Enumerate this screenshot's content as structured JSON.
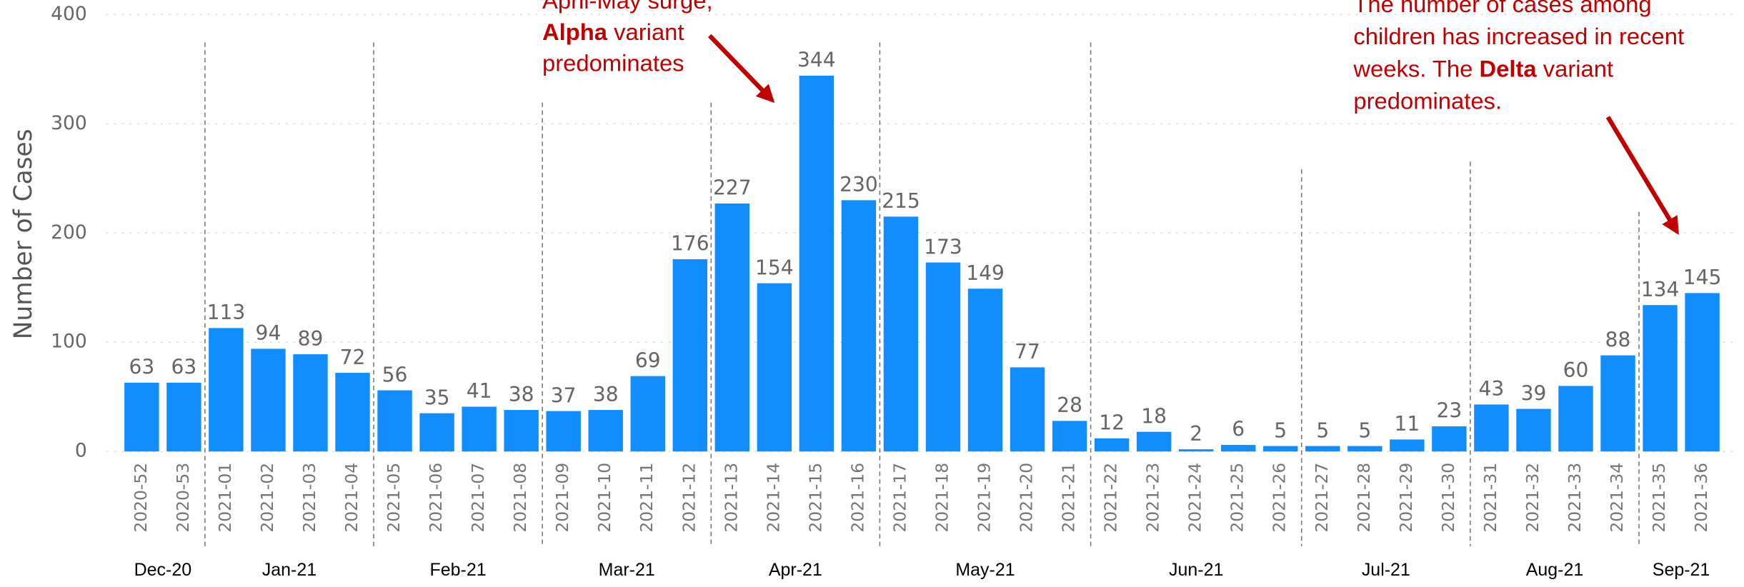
{
  "chart_data": {
    "type": "bar",
    "ylabel": "Number of Cases",
    "categories": [
      "2020-52",
      "2020-53",
      "2021-01",
      "2021-02",
      "2021-03",
      "2021-04",
      "2021-05",
      "2021-06",
      "2021-07",
      "2021-08",
      "2021-09",
      "2021-10",
      "2021-11",
      "2021-12",
      "2021-13",
      "2021-14",
      "2021-15",
      "2021-16",
      "2021-17",
      "2021-18",
      "2021-19",
      "2021-20",
      "2021-21",
      "2021-22",
      "2021-23",
      "2021-24",
      "2021-25",
      "2021-26",
      "2021-27",
      "2021-28",
      "2021-29",
      "2021-30",
      "2021-31",
      "2021-32",
      "2021-33",
      "2021-34",
      "2021-35",
      "2021-36"
    ],
    "values": [
      63,
      63,
      113,
      94,
      89,
      72,
      56,
      35,
      41,
      38,
      37,
      38,
      69,
      176,
      227,
      154,
      344,
      230,
      215,
      173,
      149,
      77,
      28,
      12,
      18,
      2,
      6,
      5,
      5,
      5,
      11,
      23,
      43,
      39,
      60,
      88,
      134,
      145
    ],
    "color": "#118dff",
    "ylim": [
      0,
      400
    ],
    "yticks": [
      0,
      100,
      200,
      300,
      400
    ],
    "grid": true,
    "months": [
      {
        "label": "Dec-20",
        "span": 2
      },
      {
        "label": "Jan-21",
        "span": 4
      },
      {
        "label": "Feb-21",
        "span": 4
      },
      {
        "label": "Mar-21",
        "span": 4
      },
      {
        "label": "Apr-21",
        "span": 4
      },
      {
        "label": "May-21",
        "span": 5
      },
      {
        "label": "Jun-21",
        "span": 5
      },
      {
        "label": "Jul-21",
        "span": 4
      },
      {
        "label": "Aug-21",
        "span": 4
      },
      {
        "label": "Sep-21",
        "span": 2
      }
    ],
    "annotations": [
      {
        "color": "#c00000",
        "lines": [
          [
            {
              "text": "April-May surge,"
            }
          ],
          [
            {
              "text": "Alpha",
              "bold": true
            },
            {
              "text": " variant"
            }
          ],
          [
            {
              "text": "predominates"
            }
          ]
        ]
      },
      {
        "color": "#c00000",
        "lines": [
          [
            {
              "text": "The number of cases among"
            }
          ],
          [
            {
              "text": "children has increased in recent"
            }
          ],
          [
            {
              "text": "weeks. The "
            },
            {
              "text": "Delta",
              "bold": true
            },
            {
              "text": " variant"
            }
          ],
          [
            {
              "text": "predominates."
            }
          ]
        ]
      }
    ]
  }
}
